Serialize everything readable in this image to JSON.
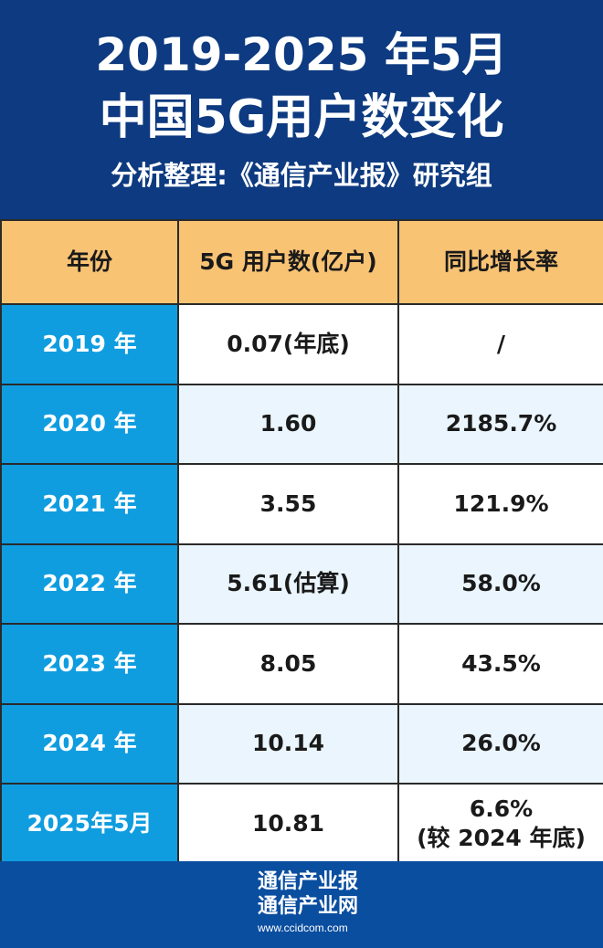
{
  "header": {
    "title_line1": "2019-2025 年5月",
    "title_line2": "中国5G用户数变化",
    "subtitle": "分析整理:《通信产业报》研究组"
  },
  "colors": {
    "header_bg": "#0d3a80",
    "column_header_bg": "#f9c374",
    "year_col_bg": "#109de0",
    "alt_row_bg": "#eaf5fd",
    "footer_bg": "#0a4ea0"
  },
  "chart_data": {
    "type": "table",
    "columns": [
      "年份",
      "5G 用户数(亿户)",
      "同比增长率"
    ],
    "rows": [
      [
        "2019 年",
        "0.07(年底)",
        "/"
      ],
      [
        "2020 年",
        "1.60",
        "2185.7%"
      ],
      [
        "2021 年",
        "3.55",
        "121.9%"
      ],
      [
        "2022 年",
        "5.61(估算)",
        "58.0%"
      ],
      [
        "2023 年",
        "8.05",
        "43.5%"
      ],
      [
        "2024 年",
        "10.14",
        "26.0%"
      ],
      [
        "2025年5月",
        "10.81",
        "6.6%\n(较 2024 年底)"
      ]
    ]
  },
  "footer": {
    "logo_line1": "通信产业报",
    "logo_line2": "通信产业网",
    "url": "www.ccidcom.com"
  }
}
